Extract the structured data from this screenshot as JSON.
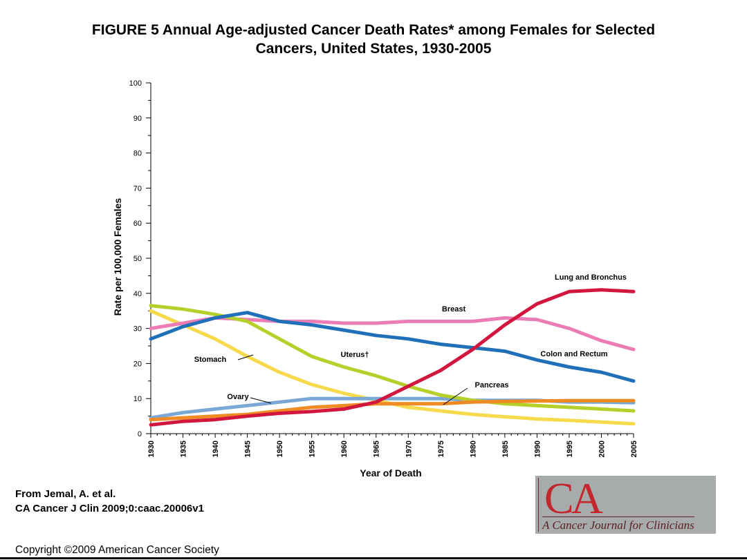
{
  "figure": {
    "title_line1": "FIGURE 5 Annual Age-adjusted Cancer Death Rates* among Females for Selected",
    "title_line2": "Cancers, United States, 1930-2005"
  },
  "credit": {
    "line1": "From Jemal, A. et al.",
    "line2": "CA Cancer J Clin 2009;0:caac.20006v1"
  },
  "copyright": "Copyright ©2009 American Cancer Society",
  "logo": {
    "mark": "CA",
    "journal": "A Cancer Journal for Clinicians"
  },
  "chart_data": {
    "type": "line",
    "xlabel": "Year of Death",
    "ylabel": "Rate per 100,000 Females",
    "xlim": [
      1930,
      2005
    ],
    "ylim": [
      0,
      100
    ],
    "x_ticks": [
      1930,
      1935,
      1940,
      1945,
      1950,
      1955,
      1960,
      1965,
      1970,
      1975,
      1980,
      1985,
      1990,
      1995,
      2000,
      2005
    ],
    "y_ticks": [
      0,
      10,
      20,
      30,
      40,
      50,
      60,
      70,
      80,
      90,
      100
    ],
    "grid": false,
    "legend": "inline labels",
    "x": [
      1930,
      1935,
      1940,
      1945,
      1950,
      1955,
      1960,
      1965,
      1970,
      1975,
      1980,
      1985,
      1990,
      1995,
      2000,
      2005
    ],
    "series": [
      {
        "name": "Lung and Bronchus",
        "color": "#d2173f",
        "values": [
          2.5,
          3.5,
          4.0,
          5.0,
          5.8,
          6.3,
          7.0,
          9.0,
          13.5,
          18.0,
          24.0,
          31.0,
          37.0,
          40.5,
          41.0,
          40.5
        ]
      },
      {
        "name": "Breast",
        "color": "#ec7cb5",
        "values": [
          30.0,
          31.5,
          33.0,
          32.5,
          32.0,
          32.0,
          31.5,
          31.5,
          32.0,
          32.0,
          32.0,
          33.0,
          32.5,
          30.0,
          26.5,
          24.0
        ]
      },
      {
        "name": "Colon and Rectum",
        "color": "#1f70b8",
        "values": [
          27.0,
          30.5,
          33.0,
          34.5,
          32.0,
          31.0,
          29.5,
          28.0,
          27.0,
          25.5,
          24.5,
          23.5,
          21.0,
          19.0,
          17.5,
          15.0
        ]
      },
      {
        "name": "Uterus†",
        "color": "#b7cf2b",
        "values": [
          36.5,
          35.5,
          34.0,
          32.0,
          27.0,
          22.0,
          19.0,
          16.5,
          13.5,
          11.0,
          9.5,
          8.5,
          8.0,
          7.5,
          7.0,
          6.5
        ]
      },
      {
        "name": "Stomach",
        "color": "#f7d94c",
        "values": [
          35.0,
          31.0,
          27.0,
          22.0,
          17.5,
          14.0,
          11.5,
          9.5,
          7.5,
          6.5,
          5.5,
          4.8,
          4.2,
          3.8,
          3.3,
          2.8
        ]
      },
      {
        "name": "Ovary",
        "color": "#7aa8d6",
        "values": [
          4.5,
          6.0,
          7.0,
          8.0,
          9.0,
          10.0,
          10.0,
          10.0,
          10.0,
          10.0,
          9.5,
          9.5,
          9.5,
          9.0,
          9.0,
          8.8
        ]
      },
      {
        "name": "Pancreas",
        "color": "#f08a22",
        "values": [
          4.0,
          4.5,
          5.0,
          5.5,
          6.5,
          7.5,
          8.0,
          8.5,
          8.5,
          8.5,
          9.0,
          9.2,
          9.3,
          9.4,
          9.4,
          9.4
        ]
      }
    ]
  }
}
